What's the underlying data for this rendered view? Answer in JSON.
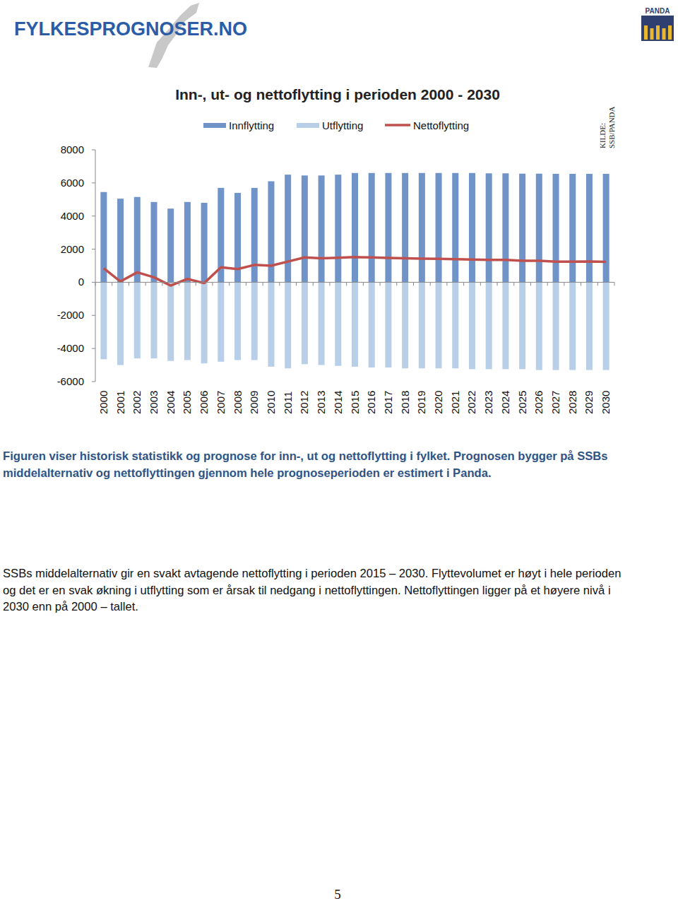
{
  "chart_data": {
    "type": "bar",
    "title": "Inn-, ut- og nettoflytting i perioden 2000 - 2030",
    "source": [
      "KILDE:",
      "SSB/PANDA"
    ],
    "categories": [
      "2000",
      "2001",
      "2002",
      "2003",
      "2004",
      "2005",
      "2006",
      "2007",
      "2008",
      "2009",
      "2010",
      "2011",
      "2012",
      "2013",
      "2014",
      "2015",
      "2016",
      "2017",
      "2018",
      "2019",
      "2020",
      "2021",
      "2022",
      "2023",
      "2024",
      "2025",
      "2026",
      "2027",
      "2028",
      "2029",
      "2030"
    ],
    "series": [
      {
        "name": "Innflytting",
        "type": "bar",
        "color": "#7094c8",
        "values": [
          5450,
          5050,
          5150,
          4850,
          4450,
          4850,
          4800,
          5700,
          5400,
          5700,
          6100,
          6500,
          6450,
          6450,
          6500,
          6600,
          6600,
          6600,
          6600,
          6600,
          6600,
          6600,
          6600,
          6580,
          6580,
          6560,
          6560,
          6550,
          6550,
          6550,
          6550
        ]
      },
      {
        "name": "Utflytting",
        "type": "bar",
        "color": "#b9cfe8",
        "values": [
          -4650,
          -5000,
          -4600,
          -4600,
          -4750,
          -4700,
          -4900,
          -4800,
          -4700,
          -4700,
          -5100,
          -5200,
          -4950,
          -5000,
          -5050,
          -5100,
          -5150,
          -5150,
          -5200,
          -5200,
          -5200,
          -5200,
          -5250,
          -5250,
          -5250,
          -5250,
          -5300,
          -5300,
          -5300,
          -5300,
          -5300
        ]
      },
      {
        "name": "Nettoflytting",
        "type": "line",
        "color": "#c0504d",
        "values": [
          850,
          50,
          600,
          300,
          -200,
          200,
          -50,
          900,
          800,
          1050,
          1000,
          1250,
          1500,
          1450,
          1480,
          1520,
          1500,
          1470,
          1450,
          1430,
          1420,
          1400,
          1370,
          1350,
          1350,
          1300,
          1300,
          1250,
          1250,
          1260,
          1230
        ]
      }
    ],
    "ylim": [
      -6000,
      8000
    ],
    "yticks": [
      -6000,
      -4000,
      -2000,
      0,
      2000,
      4000,
      6000,
      8000
    ],
    "grid": false,
    "legend": "top"
  },
  "page": {
    "header": {
      "logo": "FYLKESPROGNOSER.NO",
      "badge": "PANDA"
    },
    "caption": [
      "Figuren viser historisk statistikk og prognose for inn-, ut og nettoflytting i fylket. Prognosen bygger på SSBs",
      "middelalternativ og nettoflyttingen gjennom hele prognoseperioden er estimert i Panda."
    ],
    "body": [
      "SSBs middelalternativ gir en svakt avtagende nettoflytting i perioden 2015 – 2030. Flyttevolumet er høyt i hele perioden",
      "og det er en svak økning i utflytting som er årsak til nedgang i nettoflyttingen. Nettoflyttingen ligger på et høyere nivå i",
      "2030 enn på 2000 – tallet."
    ],
    "page_number": "5"
  }
}
